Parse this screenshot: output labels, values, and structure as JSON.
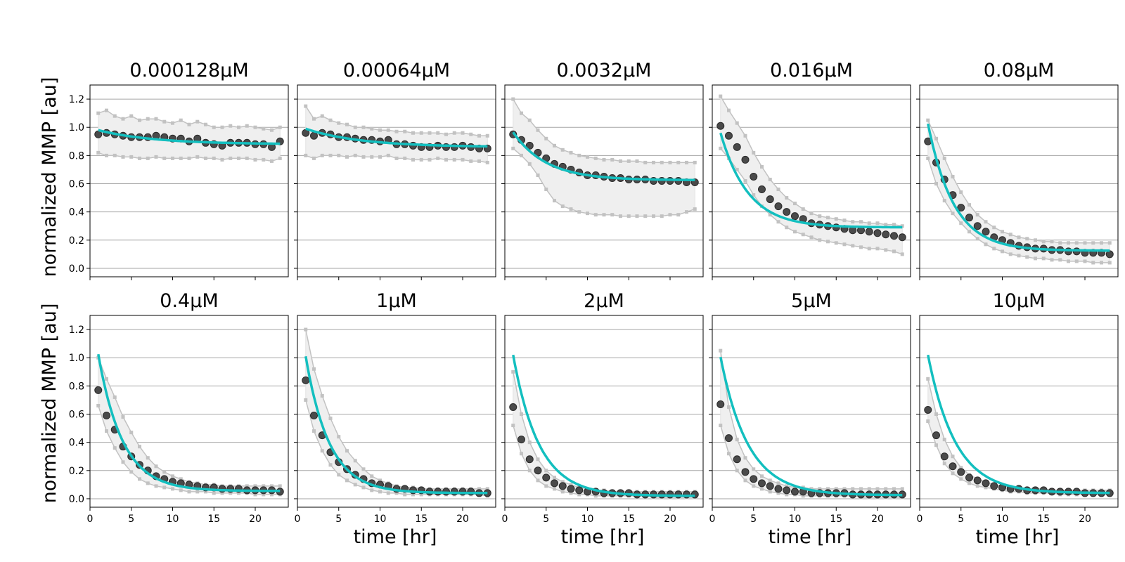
{
  "figure": {
    "ylabel": "normalized MMP [au]",
    "xlabel": "time [hr]"
  },
  "colors": {
    "fit": "#13bfbf",
    "mean_marker": "#4a4a4a",
    "replicates": "#c2c2c2",
    "band": "#efefef",
    "grid": "#a6a6a6"
  },
  "chart_data": [
    {
      "type": "scatter",
      "title": "0.000128μM",
      "xlim": [
        0,
        24
      ],
      "ylim": [
        -0.06,
        1.3
      ],
      "grid": true,
      "xticks": [
        0,
        5,
        10,
        15,
        20
      ],
      "yticks": [
        0.0,
        0.2,
        0.4,
        0.6,
        0.8,
        1.0,
        1.2
      ],
      "fit": {
        "a": 0.1,
        "b": 0.88,
        "k": 0.15
      },
      "mean": [
        0.95,
        0.96,
        0.95,
        0.94,
        0.93,
        0.93,
        0.93,
        0.94,
        0.93,
        0.92,
        0.92,
        0.9,
        0.92,
        0.89,
        0.88,
        0.87,
        0.89,
        0.89,
        0.89,
        0.88,
        0.88,
        0.86,
        0.9
      ],
      "band_upper": [
        1.1,
        1.12,
        1.08,
        1.06,
        1.08,
        1.05,
        1.06,
        1.06,
        1.04,
        1.03,
        1.05,
        1.02,
        1.04,
        1.02,
        1.0,
        1.0,
        1.01,
        1.0,
        1.01,
        1.0,
        0.99,
        0.98,
        1.0
      ],
      "band_lower": [
        0.82,
        0.8,
        0.8,
        0.79,
        0.79,
        0.78,
        0.78,
        0.79,
        0.78,
        0.78,
        0.78,
        0.78,
        0.79,
        0.78,
        0.78,
        0.77,
        0.78,
        0.78,
        0.78,
        0.77,
        0.77,
        0.76,
        0.78
      ]
    },
    {
      "type": "scatter",
      "title": "0.00064μM",
      "xlim": [
        0,
        24
      ],
      "ylim": [
        -0.06,
        1.3
      ],
      "grid": true,
      "xticks": [
        0,
        5,
        10,
        15,
        20
      ],
      "yticks": [
        0.0,
        0.2,
        0.4,
        0.6,
        0.8,
        1.0,
        1.2
      ],
      "fit": {
        "a": 0.13,
        "b": 0.86,
        "k": 0.15
      },
      "mean": [
        0.96,
        0.94,
        0.96,
        0.95,
        0.93,
        0.93,
        0.92,
        0.91,
        0.91,
        0.9,
        0.91,
        0.88,
        0.88,
        0.87,
        0.86,
        0.86,
        0.87,
        0.86,
        0.86,
        0.87,
        0.86,
        0.85,
        0.85
      ],
      "band_upper": [
        1.15,
        1.06,
        1.08,
        1.05,
        1.03,
        1.02,
        1.0,
        1.0,
        0.99,
        0.98,
        0.98,
        0.97,
        0.97,
        0.96,
        0.96,
        0.96,
        0.96,
        0.95,
        0.96,
        0.96,
        0.95,
        0.94,
        0.94
      ],
      "band_lower": [
        0.8,
        0.78,
        0.8,
        0.8,
        0.8,
        0.79,
        0.8,
        0.79,
        0.79,
        0.79,
        0.8,
        0.78,
        0.78,
        0.77,
        0.77,
        0.77,
        0.78,
        0.77,
        0.77,
        0.77,
        0.76,
        0.76,
        0.75
      ]
    },
    {
      "type": "scatter",
      "title": "0.0032μM",
      "xlim": [
        0,
        24
      ],
      "ylim": [
        -0.06,
        1.3
      ],
      "grid": true,
      "xticks": [
        0,
        5,
        10,
        15,
        20
      ],
      "yticks": [
        0.0,
        0.2,
        0.4,
        0.6,
        0.8,
        1.0,
        1.2
      ],
      "fit": {
        "a": 0.34,
        "b": 0.625,
        "k": 0.25
      },
      "mean": [
        0.95,
        0.91,
        0.87,
        0.82,
        0.78,
        0.74,
        0.72,
        0.7,
        0.68,
        0.66,
        0.66,
        0.65,
        0.64,
        0.64,
        0.63,
        0.63,
        0.63,
        0.62,
        0.62,
        0.62,
        0.62,
        0.61,
        0.61
      ],
      "band_upper": [
        1.2,
        1.1,
        1.05,
        0.98,
        0.92,
        0.87,
        0.84,
        0.82,
        0.8,
        0.79,
        0.78,
        0.77,
        0.77,
        0.76,
        0.76,
        0.76,
        0.75,
        0.75,
        0.75,
        0.75,
        0.75,
        0.75,
        0.75
      ],
      "band_lower": [
        0.85,
        0.8,
        0.74,
        0.66,
        0.56,
        0.48,
        0.44,
        0.42,
        0.4,
        0.39,
        0.38,
        0.38,
        0.38,
        0.37,
        0.37,
        0.37,
        0.37,
        0.37,
        0.37,
        0.38,
        0.38,
        0.4,
        0.42
      ]
    },
    {
      "type": "scatter",
      "title": "0.016μM",
      "xlim": [
        0,
        24
      ],
      "ylim": [
        -0.06,
        1.3
      ],
      "grid": true,
      "xticks": [
        0,
        5,
        10,
        15,
        20
      ],
      "yticks": [
        0.0,
        0.2,
        0.4,
        0.6,
        0.8,
        1.0,
        1.2
      ],
      "fit": {
        "a": 0.67,
        "b": 0.29,
        "k": 0.3
      },
      "mean": [
        1.01,
        0.94,
        0.86,
        0.77,
        0.65,
        0.56,
        0.49,
        0.44,
        0.4,
        0.37,
        0.35,
        0.32,
        0.31,
        0.3,
        0.29,
        0.28,
        0.27,
        0.27,
        0.26,
        0.25,
        0.24,
        0.23,
        0.22
      ],
      "band_upper": [
        1.22,
        1.12,
        1.03,
        0.94,
        0.82,
        0.72,
        0.63,
        0.56,
        0.5,
        0.46,
        0.42,
        0.39,
        0.37,
        0.36,
        0.35,
        0.34,
        0.33,
        0.33,
        0.32,
        0.32,
        0.31,
        0.31,
        0.3
      ],
      "band_lower": [
        0.85,
        0.78,
        0.7,
        0.62,
        0.52,
        0.44,
        0.38,
        0.33,
        0.29,
        0.26,
        0.24,
        0.22,
        0.2,
        0.19,
        0.18,
        0.17,
        0.16,
        0.15,
        0.14,
        0.14,
        0.13,
        0.12,
        0.1
      ]
    },
    {
      "type": "scatter",
      "title": "0.08μM",
      "xlim": [
        0,
        24
      ],
      "ylim": [
        -0.06,
        1.3
      ],
      "grid": true,
      "xticks": [
        0,
        5,
        10,
        15,
        20
      ],
      "yticks": [
        0.0,
        0.2,
        0.4,
        0.6,
        0.8,
        1.0,
        1.2
      ],
      "fit": {
        "a": 0.9,
        "b": 0.125,
        "k": 0.32
      },
      "mean": [
        0.9,
        0.75,
        0.63,
        0.52,
        0.43,
        0.36,
        0.3,
        0.26,
        0.22,
        0.2,
        0.18,
        0.16,
        0.15,
        0.14,
        0.14,
        0.13,
        0.13,
        0.12,
        0.12,
        0.11,
        0.11,
        0.11,
        0.1
      ],
      "band_upper": [
        1.05,
        0.92,
        0.78,
        0.65,
        0.54,
        0.45,
        0.38,
        0.33,
        0.29,
        0.26,
        0.24,
        0.22,
        0.21,
        0.2,
        0.19,
        0.19,
        0.18,
        0.18,
        0.18,
        0.18,
        0.18,
        0.18,
        0.18
      ],
      "band_lower": [
        0.78,
        0.6,
        0.48,
        0.39,
        0.32,
        0.26,
        0.21,
        0.17,
        0.14,
        0.12,
        0.1,
        0.09,
        0.08,
        0.07,
        0.07,
        0.06,
        0.06,
        0.05,
        0.05,
        0.05,
        0.04,
        0.04,
        0.04
      ]
    },
    {
      "type": "scatter",
      "title": "0.4μM",
      "xlim": [
        0,
        24
      ],
      "ylim": [
        -0.06,
        1.3
      ],
      "grid": true,
      "xticks": [
        0,
        5,
        10,
        15,
        20
      ],
      "yticks": [
        0.0,
        0.2,
        0.4,
        0.6,
        0.8,
        1.0,
        1.2
      ],
      "fit": {
        "a": 0.97,
        "b": 0.055,
        "k": 0.34
      },
      "mean": [
        0.77,
        0.59,
        0.49,
        0.37,
        0.3,
        0.24,
        0.2,
        0.16,
        0.14,
        0.12,
        0.11,
        0.1,
        0.09,
        0.08,
        0.08,
        0.07,
        0.07,
        0.07,
        0.06,
        0.06,
        0.06,
        0.06,
        0.05
      ],
      "band_upper": [
        1.0,
        0.85,
        0.72,
        0.58,
        0.47,
        0.37,
        0.29,
        0.23,
        0.19,
        0.16,
        0.14,
        0.12,
        0.11,
        0.1,
        0.1,
        0.09,
        0.09,
        0.09,
        0.09,
        0.09,
        0.09,
        0.09,
        0.09
      ],
      "band_lower": [
        0.66,
        0.48,
        0.36,
        0.26,
        0.19,
        0.14,
        0.11,
        0.09,
        0.08,
        0.07,
        0.06,
        0.05,
        0.05,
        0.05,
        0.04,
        0.04,
        0.04,
        0.04,
        0.04,
        0.03,
        0.03,
        0.03,
        0.03
      ]
    },
    {
      "type": "scatter",
      "title": "1μM",
      "xlim": [
        0,
        24
      ],
      "ylim": [
        -0.06,
        1.3
      ],
      "grid": true,
      "xticks": [
        0,
        5,
        10,
        15,
        20
      ],
      "yticks": [
        0.0,
        0.2,
        0.4,
        0.6,
        0.8,
        1.0,
        1.2
      ],
      "fit": {
        "a": 0.97,
        "b": 0.04,
        "k": 0.35
      },
      "mean": [
        0.84,
        0.59,
        0.45,
        0.33,
        0.26,
        0.21,
        0.17,
        0.14,
        0.11,
        0.1,
        0.09,
        0.07,
        0.07,
        0.06,
        0.06,
        0.05,
        0.05,
        0.05,
        0.05,
        0.05,
        0.05,
        0.04,
        0.04
      ],
      "band_upper": [
        1.2,
        0.92,
        0.73,
        0.57,
        0.44,
        0.34,
        0.27,
        0.21,
        0.16,
        0.13,
        0.11,
        0.09,
        0.08,
        0.08,
        0.07,
        0.07,
        0.07,
        0.07,
        0.07,
        0.07,
        0.07,
        0.07,
        0.07
      ],
      "band_lower": [
        0.7,
        0.48,
        0.34,
        0.24,
        0.17,
        0.13,
        0.1,
        0.08,
        0.06,
        0.05,
        0.04,
        0.04,
        0.03,
        0.03,
        0.03,
        0.03,
        0.03,
        0.03,
        0.03,
        0.03,
        0.03,
        0.03,
        0.02
      ]
    },
    {
      "type": "scatter",
      "title": "2μM",
      "xlim": [
        0,
        24
      ],
      "ylim": [
        -0.06,
        1.3
      ],
      "grid": true,
      "xticks": [
        0,
        5,
        10,
        15,
        20
      ],
      "yticks": [
        0.0,
        0.2,
        0.4,
        0.6,
        0.8,
        1.0,
        1.2
      ],
      "fit": {
        "a": 1.0,
        "b": 0.02,
        "k": 0.32
      },
      "mean": [
        0.65,
        0.42,
        0.28,
        0.2,
        0.15,
        0.11,
        0.09,
        0.07,
        0.06,
        0.05,
        0.05,
        0.04,
        0.04,
        0.04,
        0.04,
        0.03,
        0.03,
        0.03,
        0.03,
        0.03,
        0.03,
        0.03,
        0.03
      ],
      "band_upper": [
        0.9,
        0.6,
        0.4,
        0.28,
        0.2,
        0.15,
        0.12,
        0.1,
        0.08,
        0.07,
        0.06,
        0.06,
        0.05,
        0.05,
        0.05,
        0.05,
        0.05,
        0.05,
        0.05,
        0.05,
        0.05,
        0.05,
        0.05
      ],
      "band_lower": [
        0.52,
        0.32,
        0.2,
        0.13,
        0.09,
        0.07,
        0.05,
        0.04,
        0.03,
        0.03,
        0.02,
        0.02,
        0.02,
        0.02,
        0.02,
        0.02,
        0.02,
        0.01,
        0.01,
        0.01,
        0.01,
        0.01,
        0.01
      ]
    },
    {
      "type": "scatter",
      "title": "5μM",
      "xlim": [
        0,
        24
      ],
      "ylim": [
        -0.06,
        1.3
      ],
      "grid": true,
      "xticks": [
        0,
        5,
        10,
        15,
        20
      ],
      "yticks": [
        0.0,
        0.2,
        0.4,
        0.6,
        0.8,
        1.0,
        1.2
      ],
      "fit": {
        "a": 0.98,
        "b": 0.025,
        "k": 0.3
      },
      "mean": [
        0.67,
        0.43,
        0.28,
        0.19,
        0.14,
        0.11,
        0.09,
        0.07,
        0.06,
        0.05,
        0.05,
        0.04,
        0.04,
        0.04,
        0.04,
        0.04,
        0.03,
        0.03,
        0.03,
        0.03,
        0.03,
        0.03,
        0.03
      ],
      "band_upper": [
        1.05,
        0.65,
        0.42,
        0.29,
        0.21,
        0.16,
        0.13,
        0.11,
        0.09,
        0.08,
        0.08,
        0.07,
        0.07,
        0.07,
        0.07,
        0.07,
        0.07,
        0.07,
        0.07,
        0.07,
        0.07,
        0.07,
        0.07
      ],
      "band_lower": [
        0.52,
        0.32,
        0.2,
        0.13,
        0.09,
        0.07,
        0.05,
        0.04,
        0.03,
        0.03,
        0.02,
        0.02,
        0.02,
        0.02,
        0.02,
        0.02,
        0.02,
        0.01,
        0.01,
        0.01,
        0.01,
        0.01,
        0.01
      ]
    },
    {
      "type": "scatter",
      "title": "10μM",
      "xlim": [
        0,
        24
      ],
      "ylim": [
        -0.06,
        1.3
      ],
      "grid": true,
      "xticks": [
        0,
        5,
        10,
        15,
        20
      ],
      "yticks": [
        0.0,
        0.2,
        0.4,
        0.6,
        0.8,
        1.0,
        1.2
      ],
      "fit": {
        "a": 0.98,
        "b": 0.04,
        "k": 0.3
      },
      "mean": [
        0.63,
        0.45,
        0.3,
        0.23,
        0.19,
        0.15,
        0.13,
        0.11,
        0.09,
        0.08,
        0.07,
        0.07,
        0.06,
        0.06,
        0.06,
        0.05,
        0.05,
        0.05,
        0.05,
        0.04,
        0.04,
        0.04,
        0.04
      ],
      "band_upper": [
        0.85,
        0.6,
        0.42,
        0.3,
        0.22,
        0.17,
        0.14,
        0.12,
        0.1,
        0.09,
        0.08,
        0.08,
        0.07,
        0.07,
        0.07,
        0.06,
        0.06,
        0.06,
        0.06,
        0.06,
        0.06,
        0.06,
        0.06
      ],
      "band_lower": [
        0.55,
        0.38,
        0.25,
        0.18,
        0.14,
        0.11,
        0.09,
        0.08,
        0.07,
        0.06,
        0.05,
        0.05,
        0.04,
        0.04,
        0.04,
        0.04,
        0.03,
        0.03,
        0.03,
        0.03,
        0.03,
        0.03,
        0.03
      ]
    }
  ]
}
